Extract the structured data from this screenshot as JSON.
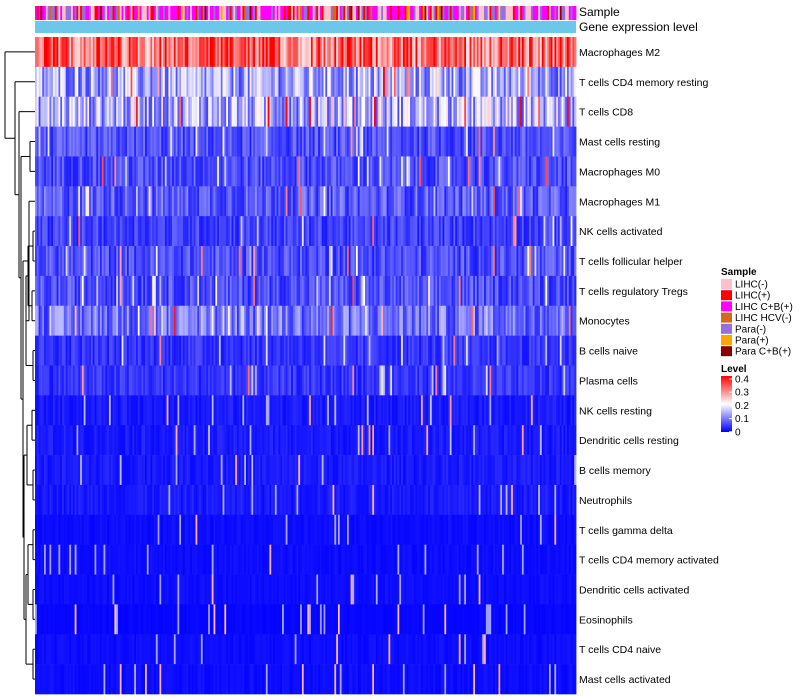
{
  "chart_data": {
    "type": "heatmap",
    "title": "",
    "annotation_rows": [
      "Sample",
      "Gene expression level"
    ],
    "rows": [
      {
        "label": "Macrophages M2",
        "mean": 0.3
      },
      {
        "label": "T cells CD4 memory resting",
        "mean": 0.13
      },
      {
        "label": "T cells CD8",
        "mean": 0.14
      },
      {
        "label": "Mast cells resting",
        "mean": 0.06
      },
      {
        "label": "Macrophages M0",
        "mean": 0.06
      },
      {
        "label": "Macrophages M1",
        "mean": 0.07
      },
      {
        "label": "NK cells activated",
        "mean": 0.05
      },
      {
        "label": "T cells follicular helper",
        "mean": 0.06
      },
      {
        "label": "T cells regulatory  Tregs",
        "mean": 0.06
      },
      {
        "label": "Monocytes",
        "mean": 0.09
      },
      {
        "label": "B cells naive",
        "mean": 0.04
      },
      {
        "label": "Plasma cells",
        "mean": 0.04
      },
      {
        "label": "NK cells resting",
        "mean": 0.02
      },
      {
        "label": "Dendritic cells resting",
        "mean": 0.02
      },
      {
        "label": "B cells memory",
        "mean": 0.02
      },
      {
        "label": "Neutrophils",
        "mean": 0.02
      },
      {
        "label": "T cells gamma delta",
        "mean": 0.01
      },
      {
        "label": "T cells CD4 memory activated",
        "mean": 0.01
      },
      {
        "label": "Dendritic cells activated",
        "mean": 0.01
      },
      {
        "label": "Eosinophils",
        "mean": 0.005
      },
      {
        "label": "T cells CD4 naive",
        "mean": 0.01
      },
      {
        "label": "Mast cells activated",
        "mean": 0.01
      }
    ],
    "sample_legend": {
      "title": "Sample",
      "entries": [
        {
          "label": "LIHC(-)",
          "color": "#ffc0cb"
        },
        {
          "label": "LIHC(+)",
          "color": "#ff0000"
        },
        {
          "label": "LIHC C+B(+)",
          "color": "#ff00ff"
        },
        {
          "label": "LIHC HCV(-)",
          "color": "#d2691e"
        },
        {
          "label": "Para(-)",
          "color": "#9370db"
        },
        {
          "label": "Para(+)",
          "color": "#ffa500"
        },
        {
          "label": "Para C+B(+)",
          "color": "#8b0000"
        }
      ]
    },
    "level_legend": {
      "title": "Level",
      "ticks": [
        "0.4",
        "0.3",
        "0.2",
        "0.1",
        "0"
      ],
      "range": [
        0,
        0.4
      ],
      "colors": [
        "#0000ff",
        "#ffffff",
        "#ff0000"
      ]
    },
    "expression_color": "#6bc8e8"
  }
}
